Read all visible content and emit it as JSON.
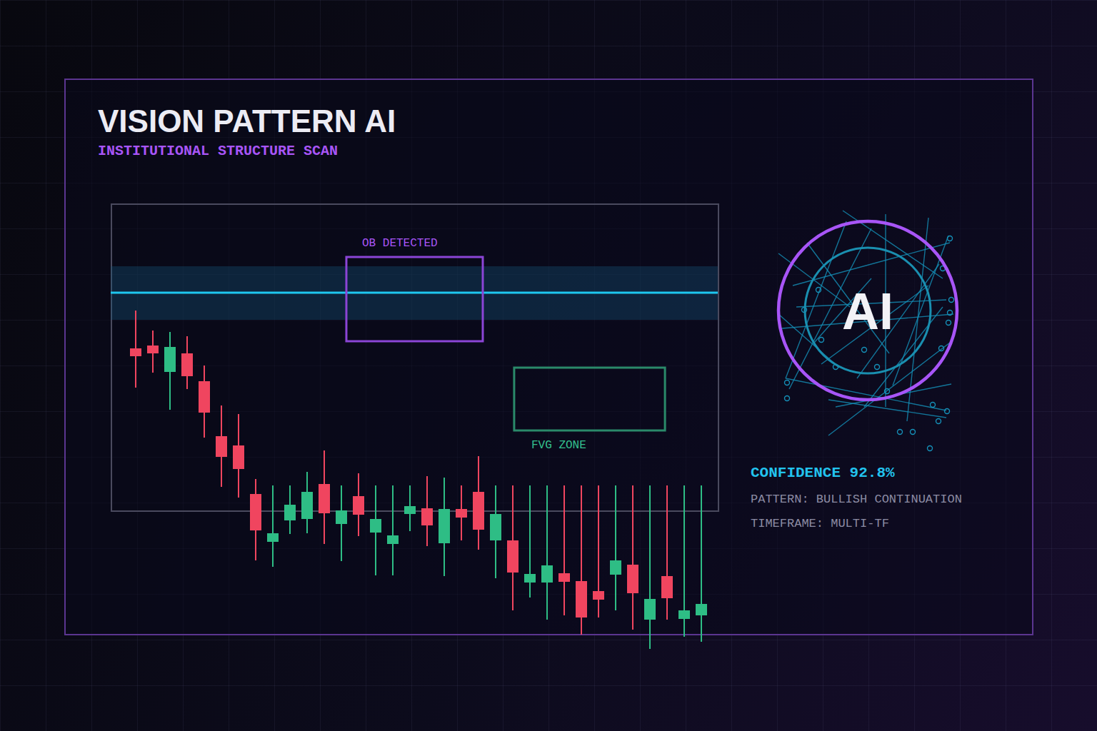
{
  "header": {
    "title": "VISION PATTERN AI",
    "subtitle": "INSTITUTIONAL STRUCTURE SCAN"
  },
  "chart_data": {
    "type": "candlestick",
    "x": [
      0,
      1,
      2,
      3,
      4,
      5,
      6,
      7,
      8,
      9,
      10,
      11,
      12,
      13,
      14,
      15,
      16,
      17,
      18,
      19,
      20,
      21,
      22,
      23,
      24,
      25,
      26,
      27,
      28,
      29,
      30,
      31,
      32,
      33
    ],
    "open": [
      512,
      516,
      479,
      505,
      466,
      389,
      376,
      308,
      241,
      271,
      273,
      322,
      266,
      305,
      254,
      238,
      280,
      288,
      239,
      287,
      311,
      243,
      243,
      184,
      184,
      197,
      186,
      172,
      195,
      209,
      132,
      193,
      133,
      138
    ],
    "high": [
      565,
      537,
      535,
      529,
      488,
      432,
      420,
      329,
      320,
      320,
      339,
      369,
      320,
      337,
      320,
      320,
      320,
      333,
      331,
      320,
      361,
      320,
      320,
      320,
      320,
      320,
      320,
      320,
      320,
      320,
      320,
      320,
      320,
      320
    ],
    "low": [
      457,
      478,
      426,
      455,
      387,
      318,
      303,
      215,
      206,
      252,
      253,
      238,
      214,
      249,
      194,
      194,
      256,
      235,
      193,
      243,
      230,
      190,
      145,
      163,
      132,
      138,
      111,
      135,
      145,
      118,
      91,
      132,
      108,
      101
    ],
    "close": [
      501,
      505,
      514,
      473,
      422,
      360,
      343,
      257,
      253,
      293,
      311,
      281,
      285,
      279,
      273,
      250,
      291,
      264,
      287,
      275,
      258,
      280,
      198,
      196,
      208,
      185,
      135,
      160,
      215,
      169,
      161,
      162,
      145,
      154
    ],
    "colors": [
      "#f0455f",
      "#f0455f",
      "#2ebd85",
      "#f0455f",
      "#f0455f",
      "#f0455f",
      "#f0455f",
      "#f0455f",
      "#2ebd85",
      "#2ebd85",
      "#2ebd85",
      "#f0455f",
      "#2ebd85",
      "#f0455f",
      "#2ebd85",
      "#2ebd85",
      "#2ebd85",
      "#f0455f",
      "#2ebd85",
      "#f0455f",
      "#f0455f",
      "#2ebd85",
      "#f0455f",
      "#2ebd85",
      "#2ebd85",
      "#f0455f",
      "#f0455f",
      "#f0455f",
      "#2ebd85",
      "#f0455f",
      "#2ebd85",
      "#f0455f",
      "#2ebd85",
      "#2ebd85"
    ],
    "xlim": [
      -1.46,
      33.96
    ],
    "ylim": [
      85,
      715
    ],
    "tick_labels": false,
    "grid": false,
    "level": {
      "value": 590,
      "band": [
        552,
        627
      ],
      "color": "#1ec8f0"
    },
    "zones": [
      {
        "label": "OB DETECTED",
        "x": [
          12.29,
          20.25
        ],
        "y": [
          522,
          640
        ],
        "color": "#8b45d6"
      },
      {
        "label": "FVG ZONE",
        "x": [
          22.08,
          30.88
        ],
        "y": [
          397,
          485
        ],
        "color": "#2a8a6a"
      }
    ]
  },
  "panel": {
    "badge": "AI",
    "confidence": {
      "value": 92.8,
      "label": "CONFIDENCE 92.8%"
    },
    "pattern": "PATTERN: BULLISH CONTINUATION",
    "timeframe": "TIMEFRAME: MULTI-TF"
  }
}
